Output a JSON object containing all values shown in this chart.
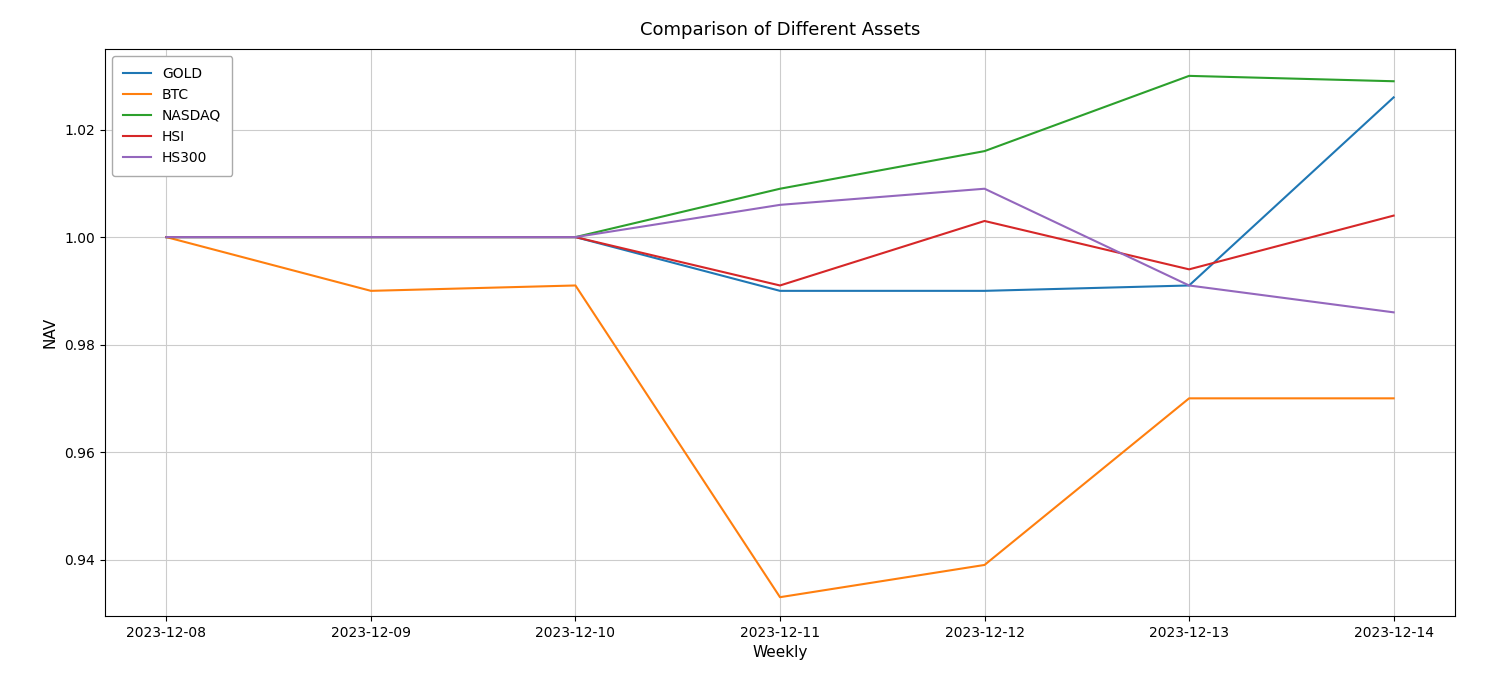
{
  "title": "Comparison of Different Assets",
  "xlabel": "Weekly",
  "ylabel": "NAV",
  "dates": [
    "2023-12-08",
    "2023-12-09",
    "2023-12-10",
    "2023-12-11",
    "2023-12-12",
    "2023-12-13",
    "2023-12-14"
  ],
  "series": {
    "GOLD": [
      1.0,
      1.0,
      1.0,
      0.99,
      0.99,
      0.991,
      1.026
    ],
    "BTC": [
      1.0,
      0.99,
      0.991,
      0.933,
      0.939,
      0.97,
      0.97
    ],
    "NASDAQ": [
      1.0,
      1.0,
      1.0,
      1.009,
      1.016,
      1.03,
      1.029
    ],
    "HSI": [
      1.0,
      1.0,
      1.0,
      0.991,
      1.003,
      0.994,
      1.004
    ],
    "HS300": [
      1.0,
      1.0,
      1.0,
      1.006,
      1.009,
      0.991,
      0.986
    ]
  },
  "colors": {
    "GOLD": "#1f77b4",
    "BTC": "#ff7f0e",
    "NASDAQ": "#2ca02c",
    "HSI": "#d62728",
    "HS300": "#9467bd"
  },
  "ylim": [
    0.9295,
    1.035
  ],
  "yticks": [
    0.94,
    0.96,
    0.98,
    1.0,
    1.02
  ],
  "figsize": [
    15,
    7
  ],
  "dpi": 100,
  "background_color": "#ffffff",
  "grid_color": "#cccccc",
  "linewidth": 1.5
}
